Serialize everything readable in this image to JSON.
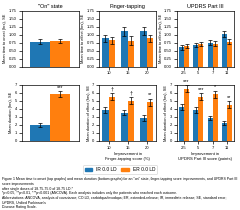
{
  "chart_data": [
    {
      "type": "bar",
      "title": "\"On\" state",
      "y_label": "Mean time to onset (hrs), SE",
      "categories": [
        null
      ],
      "series": [
        {
          "name": "IR 0.0 LD",
          "values": [
            0.78
          ],
          "errors": [
            0.07
          ]
        },
        {
          "name": "ER 0.0 LD",
          "values": [
            0.8
          ],
          "errors": [
            0.07
          ]
        }
      ],
      "ylim": [
        0,
        1.75
      ],
      "yticks": [
        {
          "value": 0,
          "label": "0.00"
        },
        {
          "value": 0.25,
          "label": "0.25"
        },
        {
          "value": 0.5,
          "label": "0.50"
        },
        {
          "value": 0.75,
          "label": "0.75"
        },
        {
          "value": 1.0,
          "label": "1.00"
        },
        {
          "value": 1.25,
          "label": "1.25"
        },
        {
          "value": 1.5,
          "label": "1.50"
        },
        {
          "value": 1.75,
          "label": "1.75"
        }
      ]
    },
    {
      "type": "bar",
      "title": "Finger-tapping",
      "y_label": "Mean time to effect (hrs), SE",
      "categories": [
        "10",
        "15",
        "20"
      ],
      "series": [
        {
          "name": "IR 0.0 LD",
          "values": [
            0.88,
            1.1,
            1.1
          ],
          "errors": [
            0.1,
            0.14,
            0.12
          ]
        },
        {
          "name": "ER 0.0 LD",
          "values": [
            0.82,
            0.8,
            0.88
          ],
          "errors": [
            0.1,
            0.14,
            0.1
          ]
        }
      ],
      "ylim": [
        0,
        1.75
      ],
      "yticks": [
        {
          "value": 0,
          "label": "0.00"
        },
        {
          "value": 0.25,
          "label": "0.25"
        },
        {
          "value": 0.5,
          "label": "0.50"
        },
        {
          "value": 0.75,
          "label": "0.75"
        },
        {
          "value": 1.0,
          "label": "1.00"
        },
        {
          "value": 1.25,
          "label": "1.25"
        },
        {
          "value": 1.5,
          "label": "1.50"
        },
        {
          "value": 1.75,
          "label": "1.75"
        }
      ]
    },
    {
      "type": "bar",
      "title": "UPDRS Part III",
      "y_label": "Mean time to effect (hrs), SE",
      "categories": [
        "2.5",
        "5",
        "7",
        "11"
      ],
      "series": [
        {
          "name": "IR 0.0 LD",
          "values": [
            0.6,
            0.68,
            0.75,
            1.02
          ],
          "errors": [
            0.07,
            0.07,
            0.07,
            0.1
          ]
        },
        {
          "name": "ER 0.0 LD",
          "values": [
            0.65,
            0.7,
            0.72,
            0.78
          ],
          "errors": [
            0.07,
            0.07,
            0.07,
            0.09
          ]
        }
      ],
      "ylim": [
        0,
        1.75
      ],
      "yticks": [
        {
          "value": 0,
          "label": "0.00"
        },
        {
          "value": 0.25,
          "label": "0.25"
        },
        {
          "value": 0.5,
          "label": "0.50"
        },
        {
          "value": 0.75,
          "label": "0.75"
        },
        {
          "value": 1.0,
          "label": "1.00"
        },
        {
          "value": 1.25,
          "label": "1.25"
        },
        {
          "value": 1.5,
          "label": "1.50"
        },
        {
          "value": 1.75,
          "label": "1.75"
        }
      ]
    },
    {
      "type": "bar",
      "y_label": "Mean duration (hrs), SE",
      "categories": [
        null
      ],
      "series": [
        {
          "name": "IR 0.0 LD",
          "values": [
            2.0
          ],
          "errors": [
            0.25
          ]
        },
        {
          "name": "ER 0.0 LD",
          "values": [
            5.8
          ],
          "errors": [
            0.4
          ],
          "annotations": [
            "***"
          ]
        }
      ],
      "ylim": [
        0,
        7
      ],
      "yticks": [
        0,
        1,
        2,
        3,
        4,
        5,
        6,
        7
      ]
    },
    {
      "type": "bar",
      "y_label": "Mean duration of effect (hrs), SE",
      "x_label": "Improvement in\nFinger-tapping score (%)",
      "categories": [
        "10",
        "15",
        "20"
      ],
      "series": [
        {
          "name": "IR 0.0 LD",
          "values": [
            3.8,
            3.5,
            2.8
          ],
          "errors": [
            0.35,
            0.35,
            0.35
          ]
        },
        {
          "name": "ER 0.0 LD",
          "values": [
            5.5,
            5.0,
            4.8
          ],
          "errors": [
            0.45,
            0.45,
            0.45
          ],
          "annotations": [
            "†",
            "†",
            "**"
          ]
        }
      ],
      "ylim": [
        0,
        7
      ],
      "yticks": [
        0,
        1,
        2,
        3,
        4,
        5,
        6,
        7
      ]
    },
    {
      "type": "bar",
      "y_label": "Mean duration of effect (hrs), SE",
      "x_label": "Improvement in\nUPDRS Part III score (points)",
      "categories": [
        "2.5",
        "5",
        "7",
        "11"
      ],
      "series": [
        {
          "name": "IR 0.0 LD",
          "values": [
            4.2,
            3.8,
            2.8,
            2.2
          ],
          "errors": [
            0.35,
            0.35,
            0.28,
            0.28
          ]
        },
        {
          "name": "ER 0.0 LD",
          "values": [
            6.5,
            5.5,
            5.8,
            4.5
          ],
          "errors": [
            0.45,
            0.45,
            0.45,
            0.45
          ],
          "annotations": [
            "***",
            "***",
            "*",
            "**"
          ]
        }
      ],
      "ylim": [
        0,
        7
      ],
      "yticks": [
        0,
        1,
        2,
        3,
        4,
        5,
        6,
        7
      ]
    }
  ],
  "legend": "lower center",
  "caption": "Figure 1 Mean time to onset (top graphs) and mean duration (bottom graphs) for an \"on\" state, finger-tapping score improvements, and UPDRS Part III score improvements\nafter single doses of 18.75-75.0 of 18.75 LD.*\n*p<0.05, **p<0.01, ***p<0.001 (ANCOVA). Each analysis includes only the patients who reached each outcome.\nAbbreviations: ANCOVA, analysis of covariance; CO-LD, carbidopa/levodopa; ER, extended-release; IR, immediate-release; SE, standard error; UPDRS, Unified Parkinson's\nDisease Rating Scale."
}
